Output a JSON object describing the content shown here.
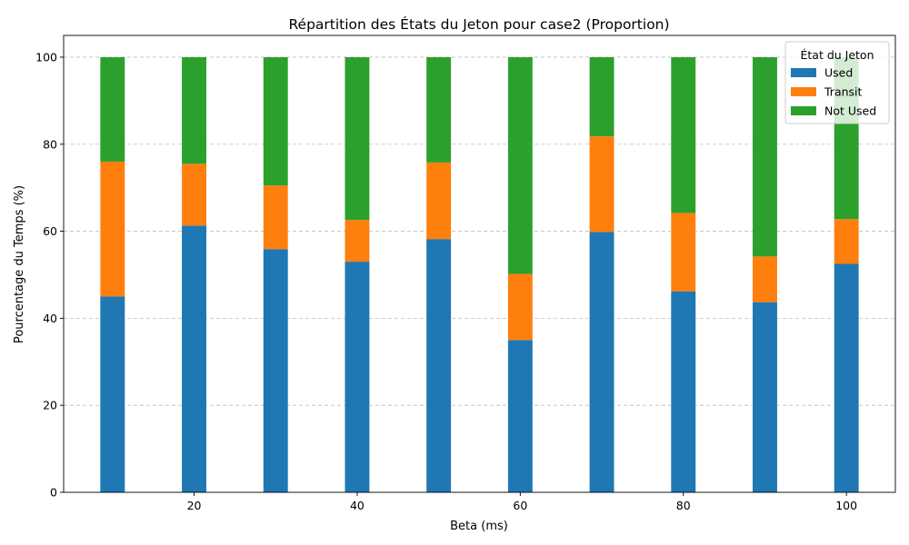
{
  "chart_data": {
    "type": "bar",
    "stacked": true,
    "title": "Répartition des États du Jeton pour case2 (Proportion)",
    "xlabel": "Beta (ms)",
    "ylabel": "Pourcentage du Temps (%)",
    "x": [
      10,
      20,
      30,
      40,
      50,
      60,
      70,
      80,
      90,
      100
    ],
    "xlim": [
      4,
      106
    ],
    "ylim": [
      0,
      105
    ],
    "bar_width": 3,
    "xticks": [
      20,
      40,
      60,
      80,
      100
    ],
    "yticks": [
      0,
      20,
      40,
      60,
      80,
      100
    ],
    "grid": "y dashed",
    "legend": {
      "title": "État du Jeton",
      "position": "top-right"
    },
    "series": [
      {
        "name": "Used",
        "color": "#1f77b4",
        "values": [
          45.0,
          61.3,
          55.9,
          53.0,
          58.2,
          35.0,
          59.8,
          46.2,
          43.7,
          52.5
        ]
      },
      {
        "name": "Transit",
        "color": "#ff7f0e",
        "values": [
          31.0,
          14.2,
          14.6,
          9.6,
          17.6,
          15.2,
          22.0,
          18.0,
          10.5,
          10.3
        ]
      },
      {
        "name": "Not Used",
        "color": "#2ca02c",
        "values": [
          24.0,
          24.5,
          29.5,
          37.4,
          24.2,
          49.8,
          18.2,
          35.8,
          45.8,
          37.2
        ]
      }
    ]
  }
}
